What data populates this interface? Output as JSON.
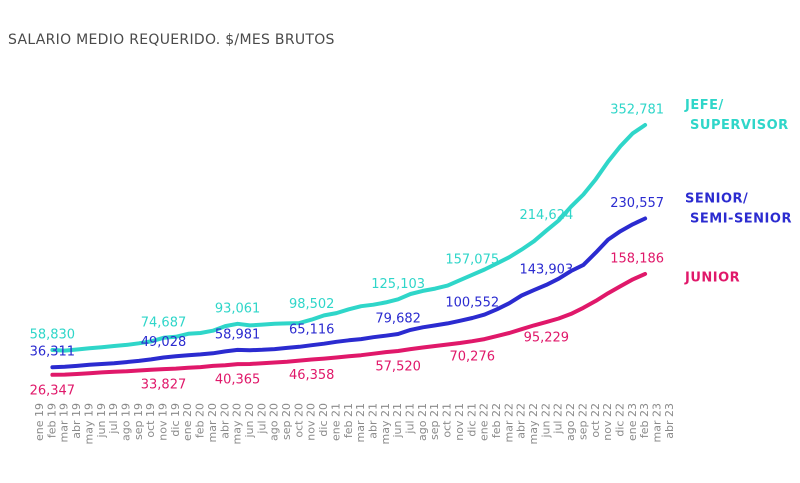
{
  "chart_data": {
    "type": "line",
    "title": "SALARIO MEDIO REQUERIDO. $/MES BRUTOS",
    "categories": [
      "ene 19",
      "feb 19",
      "mar 19",
      "abr 19",
      "may 19",
      "jun 19",
      "jul 19",
      "ago 19",
      "sep 19",
      "oct 19",
      "nov 19",
      "dic 19",
      "ene 20",
      "feb 20",
      "mar 20",
      "abr 20",
      "may 20",
      "jun 20",
      "jul 20",
      "ago 20",
      "sep 20",
      "oct 20",
      "nov 20",
      "dic 20",
      "ene 21",
      "feb 21",
      "mar 21",
      "abr 21",
      "may 21",
      "jun 21",
      "jul 21",
      "ago 21",
      "sep 21",
      "oct 21",
      "nov 21",
      "dic 21",
      "ene 22",
      "feb 22",
      "mar 22",
      "abr 22",
      "may 22",
      "jun 22",
      "jul 22",
      "ago 22",
      "sep 22",
      "oct 22",
      "nov 22",
      "dic 22",
      "ene 23",
      "feb 23",
      "mar 23",
      "abr 23"
    ],
    "series": [
      {
        "name": "JEFE/ SUPERVISOR",
        "color": "#2fd6c9",
        "values": [
          null,
          58830,
          58000,
          59500,
          61000,
          62500,
          64000,
          65500,
          67500,
          70000,
          74687,
          76000,
          80000,
          81000,
          84000,
          90000,
          93061,
          91000,
          92000,
          93000,
          93500,
          94000,
          98502,
          104000,
          107000,
          112000,
          116000,
          118000,
          121000,
          125103,
          132000,
          136000,
          139000,
          143000,
          150000,
          157075,
          164000,
          172000,
          180000,
          190000,
          201000,
          214624,
          228000,
          246000,
          262000,
          282000,
          305000,
          325000,
          342000,
          352781,
          null,
          null
        ],
        "value_labels": [
          null,
          "58,830",
          null,
          null,
          null,
          null,
          null,
          null,
          null,
          null,
          "74,687",
          null,
          null,
          null,
          null,
          null,
          "93,061",
          null,
          null,
          null,
          null,
          null,
          "98,502",
          null,
          null,
          null,
          null,
          null,
          null,
          "125,103",
          null,
          null,
          null,
          null,
          null,
          "157,075",
          null,
          null,
          null,
          null,
          null,
          "214,624",
          null,
          null,
          null,
          null,
          null,
          null,
          null,
          "352,781",
          null,
          null
        ]
      },
      {
        "name": "SENIOR/ SEMI-SENIOR",
        "color": "#2b2bd0",
        "values": [
          null,
          36311,
          36800,
          38000,
          39500,
          40500,
          41500,
          43000,
          44500,
          46500,
          49028,
          50500,
          52000,
          53000,
          54500,
          57000,
          58981,
          58500,
          59000,
          60000,
          61500,
          63000,
          65116,
          67000,
          69500,
          71500,
          73000,
          75500,
          77500,
          79682,
          85000,
          88500,
          91000,
          93500,
          97000,
          100552,
          105000,
          112000,
          120000,
          130000,
          137000,
          143903,
          152000,
          162000,
          170000,
          186000,
          203000,
          214000,
          223000,
          230557,
          null,
          null
        ],
        "value_labels": [
          null,
          "36,311",
          null,
          null,
          null,
          null,
          null,
          null,
          null,
          null,
          "49,028",
          null,
          null,
          null,
          null,
          null,
          "58,981",
          null,
          null,
          null,
          null,
          null,
          "65,116",
          null,
          null,
          null,
          null,
          null,
          null,
          "79,682",
          null,
          null,
          null,
          null,
          null,
          "100,552",
          null,
          null,
          null,
          null,
          null,
          "143,903",
          null,
          null,
          null,
          null,
          null,
          null,
          null,
          "230,557",
          null,
          null
        ]
      },
      {
        "name": "JUNIOR",
        "color": "#e0186a",
        "values": [
          null,
          26347,
          26600,
          27500,
          28500,
          29500,
          30500,
          31000,
          32000,
          33000,
          33827,
          34500,
          35500,
          36500,
          38000,
          39000,
          40365,
          40500,
          41500,
          42500,
          43500,
          45000,
          46358,
          47500,
          49000,
          50500,
          52000,
          54000,
          56000,
          57520,
          60000,
          62000,
          64000,
          66000,
          68000,
          70276,
          73000,
          77000,
          81000,
          86000,
          91000,
          95229,
          100000,
          106000,
          114000,
          123000,
          133000,
          142000,
          151000,
          158186,
          null,
          null
        ],
        "value_labels": [
          null,
          "26,347",
          null,
          null,
          null,
          null,
          null,
          null,
          null,
          null,
          "33,827",
          null,
          null,
          null,
          null,
          null,
          "40,365",
          null,
          null,
          null,
          null,
          null,
          "46,358",
          null,
          null,
          null,
          null,
          null,
          null,
          "57,520",
          null,
          null,
          null,
          null,
          null,
          "70,276",
          null,
          null,
          null,
          null,
          null,
          "95,229",
          null,
          null,
          null,
          null,
          null,
          null,
          null,
          "158,186",
          null,
          null
        ]
      }
    ]
  }
}
